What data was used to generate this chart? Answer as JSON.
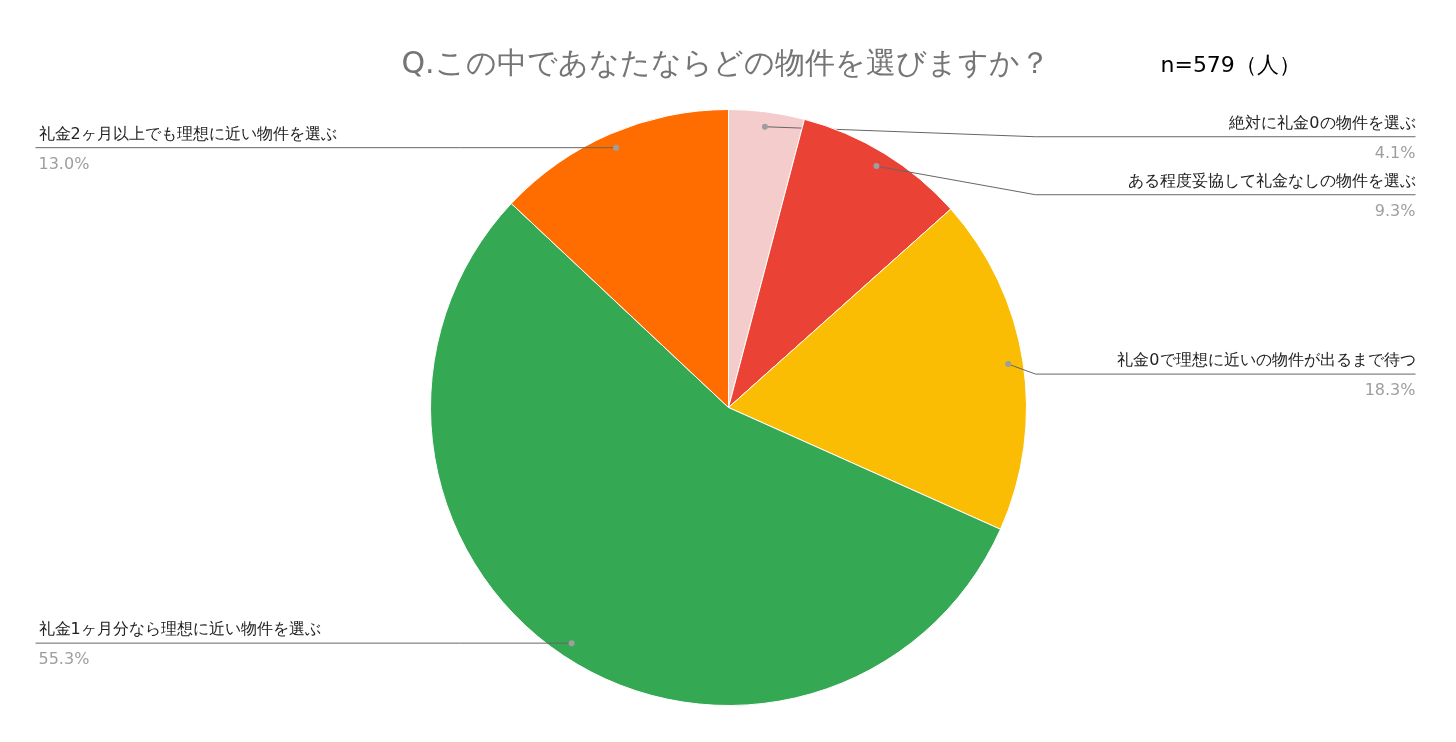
{
  "chart_data": {
    "type": "pie",
    "title": "Q.この中であなたならどの物件を選びますか？",
    "annotations": [
      "n=579（人）"
    ],
    "categories": [
      "絶対に礼金0の物件を選ぶ",
      "ある程度妥協して礼金なしの物件を選ぶ",
      "礼金0で理想に近いの物件が出るまで待つ",
      "礼金1ヶ月分なら理想に近い物件を選ぶ",
      "礼金2ヶ月以上でも理想に近い物件を選ぶ"
    ],
    "values": [
      4.1,
      9.3,
      18.3,
      55.3,
      13.0
    ],
    "colors": [
      "#f4cccc",
      "#ea4335",
      "#fbbc04",
      "#34a853",
      "#ff6d01"
    ],
    "value_labels": [
      "4.1%",
      "9.3%",
      "18.3%",
      "55.3%",
      "13.0%"
    ]
  }
}
